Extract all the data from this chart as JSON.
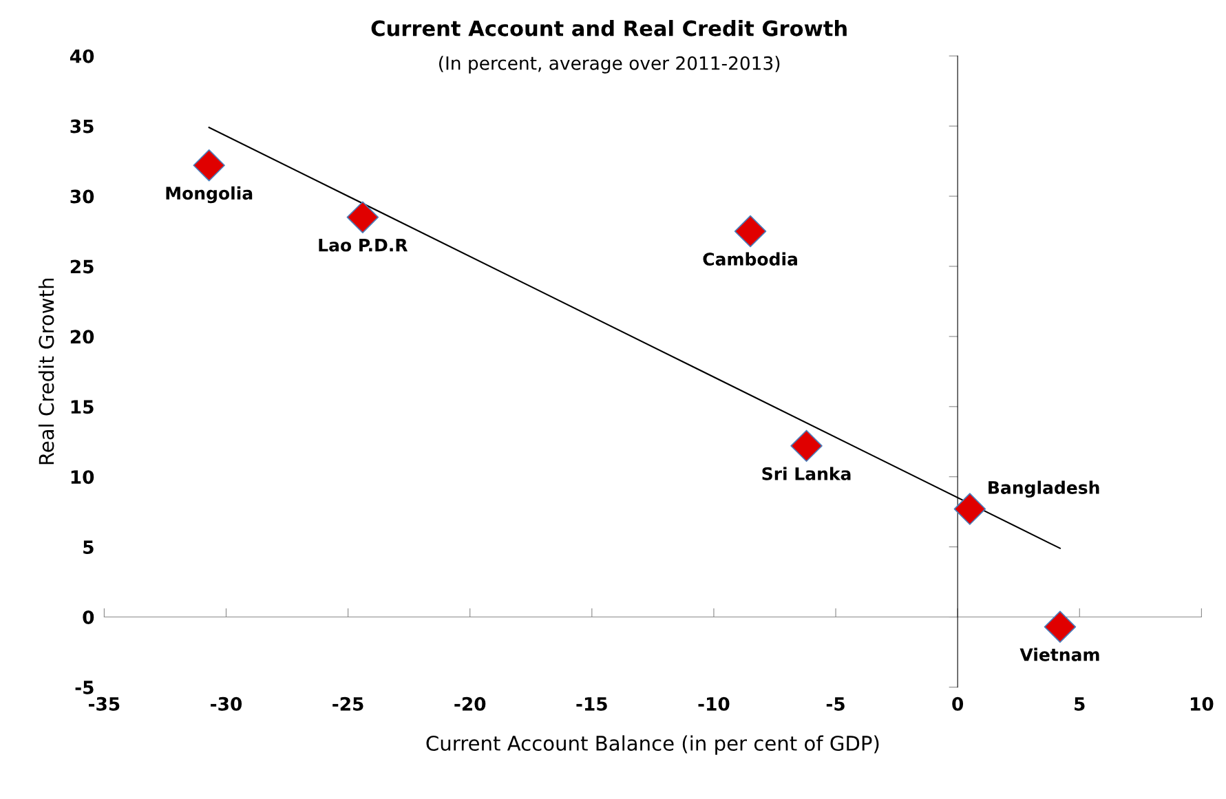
{
  "chart_data": {
    "type": "scatter",
    "title": "Current Account and Real Credit Growth",
    "subtitle": "(In percent, average over 2011-2013)",
    "xlabel": "Current Account Balance (in per cent of GDP)",
    "ylabel": "Real Credit Growth",
    "series": [
      {
        "color": "#e00000",
        "marker": "diamond",
        "x": [
          -30.7,
          -24.4,
          -8.5,
          -6.2,
          0.5,
          4.2
        ],
        "values": [
          32.2,
          28.5,
          27.5,
          12.2,
          7.7,
          -0.7
        ]
      },
      {
        "type": "line",
        "color": "#000000",
        "marker": "none",
        "x": [
          -30.7,
          4.2
        ],
        "values": [
          34.9,
          4.9
        ]
      }
    ],
    "xlim": [
      -35,
      10
    ],
    "ylim": [
      -5,
      40
    ],
    "xticks": [
      -35,
      -30,
      -25,
      -20,
      -15,
      -10,
      -5,
      0,
      5,
      10
    ],
    "yticks": [
      -5,
      0,
      5,
      10,
      15,
      20,
      25,
      30,
      35,
      40
    ],
    "grid": false,
    "annotations": [
      {
        "text": "Mongolia",
        "x": -30.7,
        "y": 32.2
      },
      {
        "text": "Lao P.D.R",
        "x": -24.4,
        "y": 28.5
      },
      {
        "text": "Cambodia",
        "x": -8.5,
        "y": 27.5
      },
      {
        "text": "Sri Lanka",
        "x": -6.2,
        "y": 12.2
      },
      {
        "text": "Bangladesh",
        "x": 0.5,
        "y": 7.7
      },
      {
        "text": "Vietnam",
        "x": 4.2,
        "y": -0.7
      }
    ]
  }
}
